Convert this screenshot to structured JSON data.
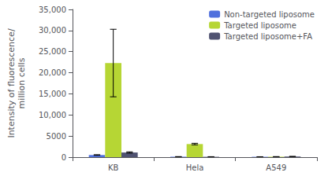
{
  "chart_data": {
    "type": "bar",
    "categories": [
      "KB",
      "Hela",
      "A549"
    ],
    "series": [
      {
        "name": "Non-targeted liposome",
        "values": [
          500,
          100,
          80
        ],
        "errors": [
          80,
          30,
          20
        ]
      },
      {
        "name": "Targeted liposome",
        "values": [
          22300,
          3100,
          100
        ],
        "errors": [
          8000,
          180,
          30
        ]
      },
      {
        "name": "Targeted liposome+FA",
        "values": [
          1100,
          80,
          150
        ],
        "errors": [
          150,
          30,
          30
        ]
      }
    ],
    "ylabel": "Intensity of fluorescence/\nmillion cells",
    "ylim": [
      0,
      35000
    ],
    "yticks": [
      0,
      5000,
      {
        "value": 10000,
        "label": "10,000"
      },
      {
        "value": 15000,
        "label": "15,000"
      },
      {
        "value": 20000,
        "label": "20,000"
      },
      {
        "value": 25000,
        "label": "25,000"
      },
      {
        "value": 30000,
        "label": "30,000"
      },
      {
        "value": 35000,
        "label": "35,000"
      }
    ],
    "legend": "upper right",
    "grid": false
  }
}
